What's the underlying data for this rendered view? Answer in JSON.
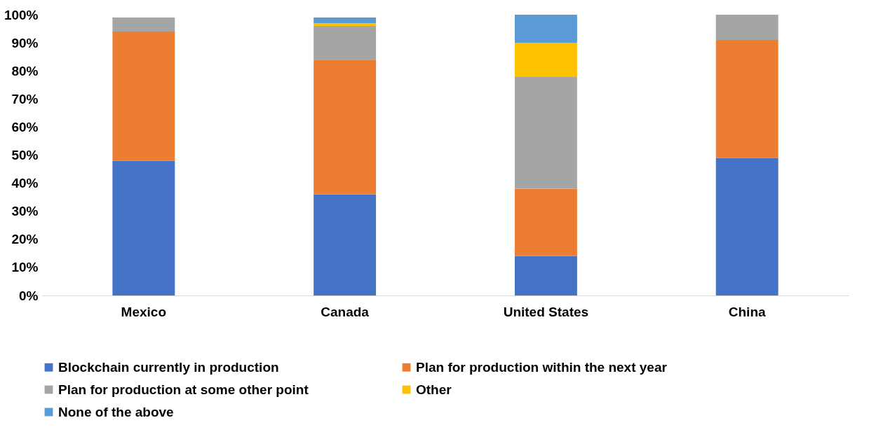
{
  "chart_data": {
    "type": "bar",
    "stacked": true,
    "categories": [
      "Mexico",
      "Canada",
      "United States",
      "China"
    ],
    "series": [
      {
        "name": "Blockchain currently in production",
        "color": "#4472c4",
        "values": [
          48,
          36,
          14,
          49
        ]
      },
      {
        "name": "Plan for production within the next year",
        "color": "#ed7d31",
        "values": [
          46,
          48,
          24,
          42
        ]
      },
      {
        "name": "Plan for production at some other point",
        "color": "#a5a5a5",
        "values": [
          5,
          12,
          40,
          9
        ]
      },
      {
        "name": "Other",
        "color": "#ffc000",
        "values": [
          null,
          1,
          12,
          null
        ]
      },
      {
        "name": "None of the above",
        "color": "#5b9bd5",
        "values": [
          null,
          2,
          10,
          null
        ]
      }
    ],
    "ylim": [
      0,
      100
    ],
    "yticks": [
      {
        "value": 0,
        "label": "0%"
      },
      {
        "value": 10,
        "label": "10%"
      },
      {
        "value": 20,
        "label": "20%"
      },
      {
        "value": 30,
        "label": "30%"
      },
      {
        "value": 40,
        "label": "40%"
      },
      {
        "value": 50,
        "label": "50%"
      },
      {
        "value": 60,
        "label": "60%"
      },
      {
        "value": 70,
        "label": "70%"
      },
      {
        "value": 80,
        "label": "80%"
      },
      {
        "value": 90,
        "label": "90%"
      },
      {
        "value": 100,
        "label": "100%"
      }
    ],
    "grid": false,
    "legend": "bottom"
  }
}
